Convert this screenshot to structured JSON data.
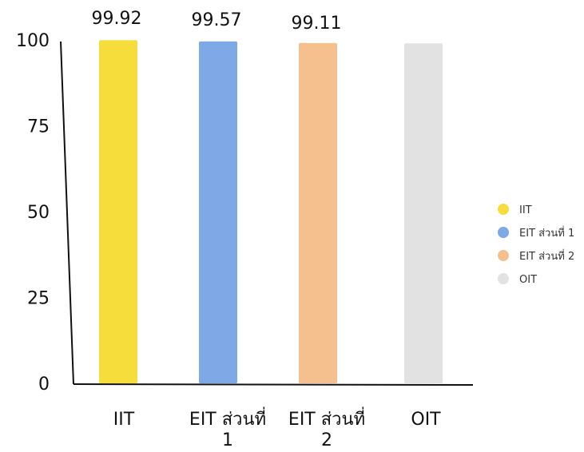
{
  "chart_data": {
    "type": "bar",
    "title": "",
    "xlabel": "",
    "ylabel": "",
    "categories": [
      "IIT",
      "EIT ส่วนที่ 1",
      "EIT ส่วนที่ 2",
      "OIT"
    ],
    "category_label_lines": [
      [
        "IIT"
      ],
      [
        "EIT ส่วนที่",
        "1"
      ],
      [
        "EIT ส่วนที่",
        "2"
      ],
      [
        "OIT"
      ]
    ],
    "values": [
      99.92,
      99.57,
      99.11,
      99.0
    ],
    "data_labels": [
      "99.92",
      "99.57",
      "99.11",
      ""
    ],
    "colors": [
      "#f7dd3b",
      "#7fa8e6",
      "#f6bf8e",
      "#e2e2e2"
    ],
    "ylim": [
      0,
      100
    ],
    "yticks": [
      0,
      25,
      50,
      75,
      100
    ],
    "grid": false,
    "legend": {
      "placement": "right",
      "entries": [
        "IIT",
        "EIT ส่วนที่ 1",
        "EIT ส่วนที่ 2",
        "OIT"
      ]
    }
  }
}
